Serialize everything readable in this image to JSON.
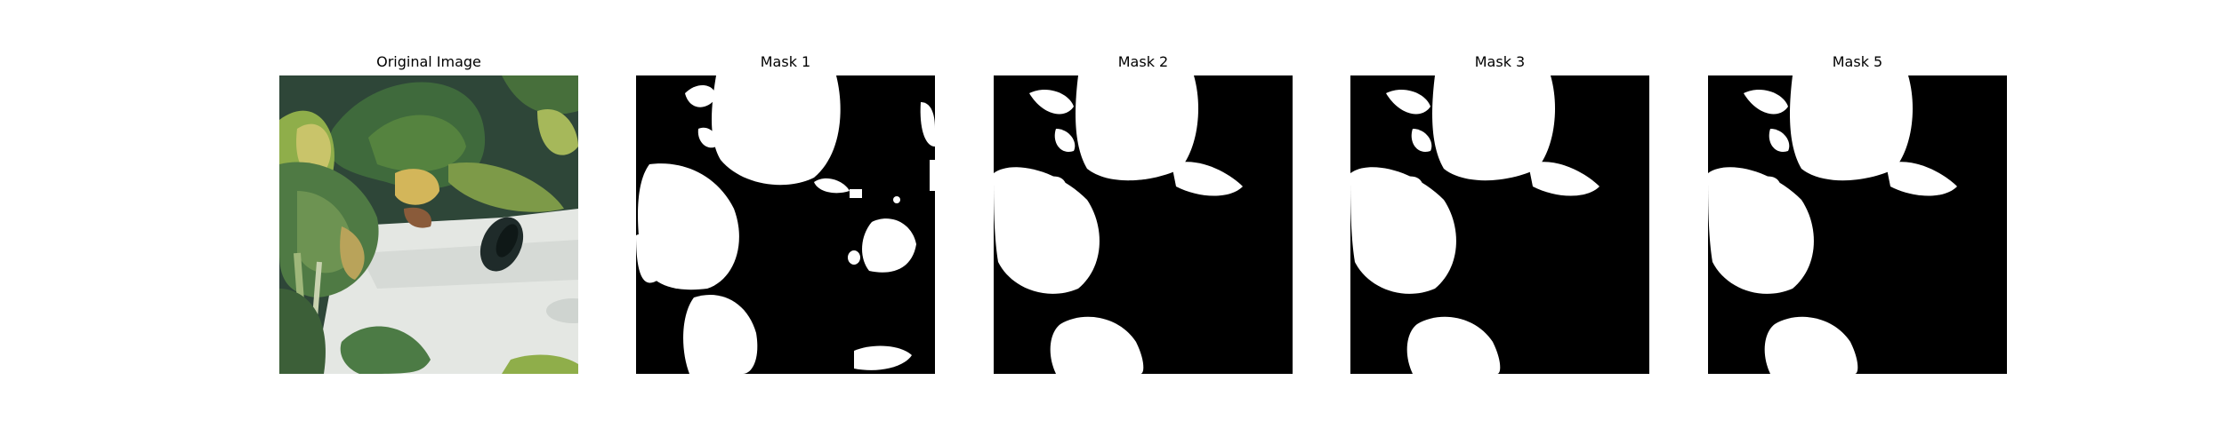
{
  "figure": {
    "panels": [
      {
        "title": "Original Image",
        "kind": "photo"
      },
      {
        "title": "Mask 1",
        "kind": "mask"
      },
      {
        "title": "Mask 2",
        "kind": "mask"
      },
      {
        "title": "Mask 3",
        "kind": "mask"
      },
      {
        "title": "Mask 5",
        "kind": "mask"
      }
    ]
  },
  "colors": {
    "mask_foreground": "#ffffff",
    "mask_background": "#000000",
    "leaf_dark": "#3f6a3c",
    "leaf_light": "#8fae4a",
    "leaf_yellow": "#c9c46a",
    "pot_white": "#e4e7e3",
    "hole_dark": "#1f2b2a"
  }
}
